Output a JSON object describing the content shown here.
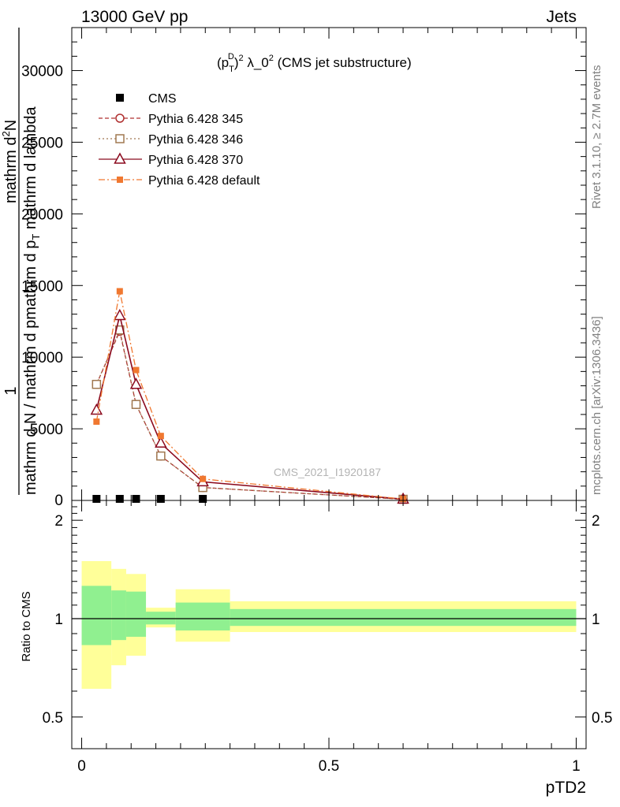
{
  "header": {
    "left": "13000 GeV pp",
    "right": "Jets"
  },
  "side_labels": {
    "rivet": "Rivet 3.1.10, ≥ 2.7M events",
    "mcplots": "mcplots.cern.ch [arXiv:1306.3436]"
  },
  "watermark": "CMS_2021_I1920187",
  "colors": {
    "cms": "#000000",
    "p345": "#b03030",
    "p346": "#a07850",
    "p370": "#8b0a1e",
    "default": "#f07830",
    "band_inner": "#90f090",
    "band_outer": "#ffff99"
  },
  "chart_data": [
    {
      "type": "line",
      "title": "(p_T^D)^2 λ_0^2 (CMS jet substructure)",
      "title_parts": {
        "a": "(p",
        "sup1": "D",
        "sub1": "T",
        "b": ")",
        "sup2": "2",
        "c": " λ_0",
        "sup3": "2",
        "d": " (CMS jet substructure)"
      },
      "ylabel_parts": {
        "numerator": "1",
        "den_a": "mathrm d N / mathrm d p",
        "den_b": "mathrm d p",
        "den_sub": "T",
        "den_c": " mathrm d lambda",
        "top_a": "mathrm d",
        "top_sup": "2",
        "top_b": "N",
        "full": "mathrm d^2N / mathrm d p_T mathrm d lambda"
      },
      "xlim": [
        -0.02,
        1.02
      ],
      "ylim": [
        0,
        33000
      ],
      "y_ticks": [
        5000,
        10000,
        15000,
        20000,
        25000,
        30000
      ],
      "y_tick_labels": [
        "5000",
        "10000",
        "15000",
        "20000",
        "25000",
        "30000"
      ],
      "y_zero_label": "0",
      "legend_position": "top-left",
      "series": [
        {
          "name": "CMS",
          "style": "cms",
          "x": [
            0.03,
            0.077,
            0.11,
            0.16,
            0.245
          ],
          "y": [
            0,
            0,
            0,
            0,
            0
          ]
        },
        {
          "name": "Pythia 6.428 345",
          "style": "p345",
          "x": [
            0.03,
            0.077,
            0.11,
            0.16,
            0.245,
            0.65
          ],
          "y": [
            8100,
            11800,
            6700,
            3100,
            900,
            80
          ]
        },
        {
          "name": "Pythia 6.428 346",
          "style": "p346",
          "x": [
            0.03,
            0.077,
            0.11,
            0.16,
            0.245,
            0.65
          ],
          "y": [
            8100,
            11900,
            6700,
            3100,
            900,
            80
          ]
        },
        {
          "name": "Pythia 6.428 370",
          "style": "p370",
          "x": [
            0.03,
            0.077,
            0.11,
            0.16,
            0.245,
            0.65
          ],
          "y": [
            6300,
            12900,
            8100,
            4000,
            1300,
            90
          ]
        },
        {
          "name": "Pythia 6.428 default",
          "style": "default",
          "x": [
            0.03,
            0.077,
            0.11,
            0.16,
            0.245,
            0.65
          ],
          "y": [
            5500,
            14600,
            9100,
            4500,
            1500,
            100
          ]
        }
      ]
    },
    {
      "type": "area",
      "ylabel": "Ratio to CMS",
      "xlabel": "pTD2",
      "xlim": [
        -0.02,
        1.02
      ],
      "ylim": [
        0.4,
        2.3
      ],
      "y_scale": "log",
      "y_ticks": [
        0.5,
        1,
        2
      ],
      "y_tick_labels": [
        "0.5",
        "1",
        "2"
      ],
      "x_ticks": [
        0,
        0.5,
        1
      ],
      "x_tick_labels": [
        "0",
        "0.5",
        "1"
      ],
      "reference_line": 1,
      "bins": [
        {
          "x": [
            0,
            0.06
          ],
          "inner": [
            0.83,
            1.26
          ],
          "outer": [
            0.61,
            1.5
          ]
        },
        {
          "x": [
            0.06,
            0.09
          ],
          "inner": [
            0.86,
            1.22
          ],
          "outer": [
            0.72,
            1.42
          ]
        },
        {
          "x": [
            0.09,
            0.13
          ],
          "inner": [
            0.88,
            1.21
          ],
          "outer": [
            0.77,
            1.37
          ]
        },
        {
          "x": [
            0.13,
            0.19
          ],
          "inner": [
            0.96,
            1.05
          ],
          "outer": [
            0.94,
            1.08
          ]
        },
        {
          "x": [
            0.19,
            0.3
          ],
          "inner": [
            0.92,
            1.12
          ],
          "outer": [
            0.85,
            1.23
          ]
        },
        {
          "x": [
            0.3,
            1.0
          ],
          "inner": [
            0.95,
            1.07
          ],
          "outer": [
            0.91,
            1.13
          ]
        }
      ]
    }
  ]
}
